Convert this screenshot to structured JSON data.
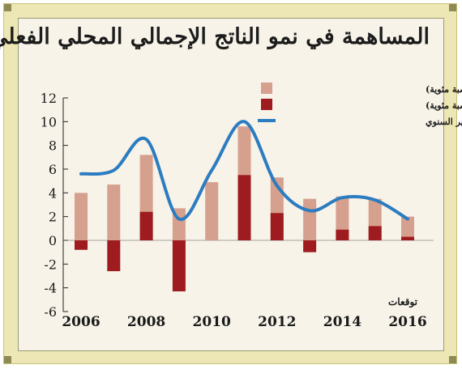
{
  "colors": {
    "non_oil": "#d6a08e",
    "oil": "#9e1b1f",
    "gdp_line": "#2b7cc0",
    "frame": "#ece7b4",
    "panel": "#f7f3e9"
  },
  "chart_data": {
    "type": "bar",
    "title": "المساهمة في نمو الناتج الإجمالي المحلي الفعلي",
    "x": [
      2006,
      2007,
      2008,
      2009,
      2010,
      2011,
      2012,
      2013,
      2014,
      2015,
      2016
    ],
    "x_tick_labels": [
      "2006",
      "2008",
      "2010",
      "2012",
      "2014",
      "2016"
    ],
    "y_tick_labels": [
      "12",
      "10",
      "8",
      "6",
      "4",
      "2",
      "0",
      "-2",
      "-4",
      "-6"
    ],
    "ylim": [
      -6,
      12
    ],
    "grid": false,
    "legend_position": "top-right",
    "annotation": "توقعات",
    "series": [
      {
        "name": "مساهمة القطاع غير النفطي (نسبة مئوية)",
        "kind": "bar",
        "values": [
          4.0,
          4.7,
          7.2,
          2.7,
          4.9,
          9.6,
          5.3,
          3.5,
          3.7,
          3.5,
          2.0
        ]
      },
      {
        "name": "مساهمة القطاع النفطي (نسبة مئوية)",
        "kind": "bar",
        "values": [
          -0.8,
          -2.6,
          2.4,
          -4.3,
          0,
          5.5,
          2.3,
          -1.0,
          0.9,
          1.2,
          0.3
        ]
      },
      {
        "name": "الناتج الإجمالي الفعلي/ التغير السنوي",
        "kind": "line",
        "values": [
          5.6,
          5.9,
          8.5,
          1.8,
          5.9,
          10.0,
          4.6,
          2.5,
          3.6,
          3.4,
          1.8
        ]
      }
    ]
  }
}
